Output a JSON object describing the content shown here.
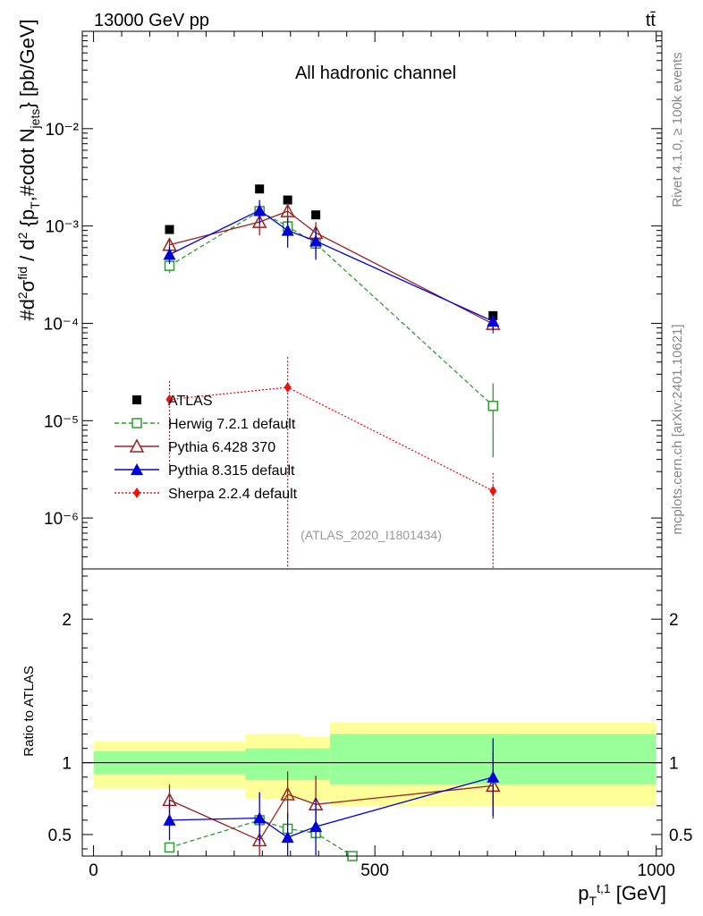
{
  "header": {
    "energy_label": "13000 GeV pp",
    "process_label": "tt̄",
    "rivet_label": "Rivet 4.1.0, ≥ 100k events",
    "mcplots_label": "mcplots.cern.ch [arXiv:2401.10621]"
  },
  "chart_data": [
    {
      "type": "scatter",
      "panel": "main",
      "title": "All hadronic channel",
      "analysis_label": "(ATLAS_2020_I1801434)",
      "ylabel": "#d²σ^fid / d² {p_T^t,1 #cdot N_jets} [pb/GeV]",
      "yscale": "log",
      "ylim": [
        3e-07,
        0.1
      ],
      "xlim": [
        -20,
        1010
      ],
      "y_tick_labels": [
        "10⁻⁶",
        "10⁻⁵",
        "10⁻⁴",
        "10⁻³",
        "10⁻²"
      ],
      "y_tick_values": [
        1e-06,
        1e-05,
        0.0001,
        0.001,
        0.01
      ],
      "series": [
        {
          "name": "ATLAS",
          "color": "#000000",
          "marker": "square-filled",
          "line": "none",
          "x": [
            135,
            295,
            345,
            395,
            710
          ],
          "y": [
            0.00092,
            0.0024,
            0.00185,
            0.0013,
            0.00012
          ]
        },
        {
          "name": "Herwig 7.2.1 default",
          "color": "#339933",
          "marker": "square-open",
          "line": "dashed",
          "x": [
            135,
            295,
            345,
            395,
            710
          ],
          "y": [
            0.00039,
            0.00142,
            0.00099,
            0.00066,
            1.42e-05
          ],
          "err_lo": [
            6e-05,
            0.0002,
            0.00025,
            0.00015,
            1e-05
          ],
          "err_hi": [
            6e-05,
            0.0002,
            0.00025,
            0.00015,
            1e-05
          ]
        },
        {
          "name": "Pythia 6.428 370",
          "color": "#992222",
          "marker": "triangle-open",
          "line": "solid",
          "x": [
            135,
            295,
            345,
            395,
            710
          ],
          "y": [
            0.00064,
            0.0011,
            0.00142,
            0.00085,
            9.85e-05
          ],
          "err_lo": [
            0.0001,
            0.0003,
            0.0003,
            0.00025,
            2e-05
          ],
          "err_hi": [
            0.0001,
            0.0003,
            0.0003,
            0.00025,
            2e-05
          ]
        },
        {
          "name": "Pythia 8.315 default",
          "color": "#0000dd",
          "marker": "triangle-filled",
          "line": "solid",
          "x": [
            135,
            295,
            345,
            395,
            710
          ],
          "y": [
            0.00051,
            0.00145,
            0.0009,
            0.0007,
            0.000105
          ],
          "err_lo": [
            0.0001,
            0.0004,
            0.0003,
            0.00025,
            2e-05
          ],
          "err_hi": [
            0.0001,
            0.0004,
            0.0003,
            0.00025,
            2e-05
          ]
        },
        {
          "name": "Sherpa 2.2.4 default",
          "color": "#ee1111",
          "marker": "diamond-filled",
          "line": "dotted",
          "x": [
            135,
            345,
            710
          ],
          "y": [
            1.65e-05,
            2.2e-05,
            1.9e-06
          ],
          "err_lo": [
            1.3e-05,
            2.2e-05,
            1.9e-06
          ],
          "err_hi": [
            9e-06,
            2.3e-05,
            1e-06
          ]
        }
      ]
    },
    {
      "type": "scatter",
      "panel": "ratio",
      "ylabel": "Ratio to ATLAS",
      "xlabel": "p_T^{t,1} [GeV]",
      "ylim": [
        0.35,
        2.35
      ],
      "xlim": [
        -20,
        1010
      ],
      "y_tick_labels": [
        "0.5",
        "1",
        "2"
      ],
      "y_tick_values": [
        0.5,
        1,
        2
      ],
      "x_tick_labels": [
        "0",
        "500",
        "1000"
      ],
      "x_tick_values": [
        0,
        500,
        1000
      ],
      "bands": [
        {
          "x0": 0,
          "x1": 270,
          "green": [
            0.92,
            1.08
          ],
          "yellow": [
            0.82,
            1.15
          ]
        },
        {
          "x0": 270,
          "x1": 370,
          "green": [
            0.88,
            1.1
          ],
          "yellow": [
            0.75,
            1.2
          ]
        },
        {
          "x0": 370,
          "x1": 420,
          "green": [
            0.88,
            1.1
          ],
          "yellow": [
            0.73,
            1.18
          ]
        },
        {
          "x0": 420,
          "x1": 1000,
          "green": [
            0.85,
            1.2
          ],
          "yellow": [
            0.7,
            1.28
          ]
        }
      ],
      "series": [
        {
          "name": "Herwig 7.2.1 default",
          "color": "#339933",
          "marker": "square-open",
          "line": "dashed",
          "x": [
            135,
            295,
            345,
            395,
            460
          ],
          "y": [
            0.41,
            0.6,
            0.54,
            0.51,
            0.35
          ],
          "err_lo": [
            0,
            0,
            0,
            0,
            0
          ],
          "err_hi": [
            0,
            0,
            0,
            0,
            0
          ]
        },
        {
          "name": "Pythia 6.428 370",
          "color": "#992222",
          "marker": "triangle-open",
          "line": "solid",
          "x": [
            135,
            295,
            345,
            395,
            710
          ],
          "y": [
            0.74,
            0.46,
            0.78,
            0.71,
            0.84
          ],
          "err_lo": [
            0.11,
            0.14,
            0.16,
            0.2,
            0.23
          ],
          "err_hi": [
            0.11,
            0.14,
            0.16,
            0.2,
            0.23
          ]
        },
        {
          "name": "Pythia 8.315 default",
          "color": "#0000dd",
          "marker": "triangle-filled",
          "line": "solid",
          "x": [
            135,
            295,
            345,
            395,
            710
          ],
          "y": [
            0.6,
            0.615,
            0.48,
            0.555,
            0.9
          ],
          "err_lo": [
            0.14,
            0.18,
            0.17,
            0.2,
            0.27
          ],
          "err_hi": [
            0.14,
            0.18,
            0.17,
            0.2,
            0.27
          ]
        }
      ]
    }
  ]
}
